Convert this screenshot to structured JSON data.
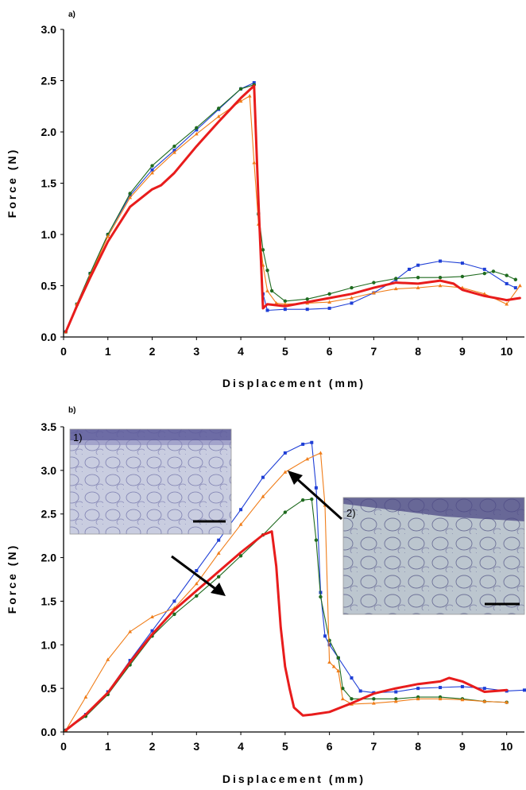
{
  "chart_data": [
    {
      "type": "line",
      "panel_label": "a)",
      "xlabel": "Displacement (mm)",
      "ylabel": "Force (N)",
      "xlim": [
        0,
        10.4
      ],
      "ylim": [
        0,
        3.0
      ],
      "xticks": [
        "0",
        "1",
        "2",
        "3",
        "4",
        "5",
        "6",
        "7",
        "8",
        "9",
        "10"
      ],
      "yticks": [
        "0.0",
        "0.5",
        "1.0",
        "1.5",
        "2.0",
        "2.5",
        "3.0"
      ],
      "grid": false,
      "series": [
        {
          "color": "#1f3fd6",
          "marker": "square",
          "x": [
            0.05,
            0.3,
            0.6,
            1.0,
            1.5,
            2.0,
            2.5,
            3.0,
            3.5,
            4.0,
            4.3,
            4.4,
            4.5,
            4.6,
            5.0,
            5.5,
            6.0,
            6.5,
            7.0,
            7.5,
            7.8,
            8.0,
            8.5,
            9.0,
            9.5,
            10.0,
            10.2
          ],
          "y": [
            0.05,
            0.32,
            0.62,
            1.0,
            1.38,
            1.63,
            1.82,
            2.02,
            2.22,
            2.42,
            2.48,
            1.2,
            0.42,
            0.26,
            0.27,
            0.27,
            0.28,
            0.33,
            0.43,
            0.56,
            0.66,
            0.7,
            0.74,
            0.72,
            0.66,
            0.52,
            0.48
          ]
        },
        {
          "color": "#1f6b1f",
          "marker": "circle",
          "x": [
            0.05,
            0.3,
            0.6,
            1.0,
            1.5,
            2.0,
            2.5,
            3.0,
            3.5,
            4.0,
            4.3,
            4.4,
            4.5,
            4.6,
            4.7,
            5.0,
            5.5,
            6.0,
            6.5,
            7.0,
            7.5,
            8.0,
            8.5,
            9.0,
            9.5,
            9.7,
            10.0,
            10.2
          ],
          "y": [
            0.05,
            0.32,
            0.62,
            1.0,
            1.4,
            1.67,
            1.86,
            2.04,
            2.23,
            2.42,
            2.46,
            1.2,
            0.85,
            0.65,
            0.45,
            0.35,
            0.37,
            0.42,
            0.48,
            0.53,
            0.57,
            0.58,
            0.58,
            0.59,
            0.62,
            0.64,
            0.6,
            0.56
          ]
        },
        {
          "color": "#f07d19",
          "marker": "triangle",
          "x": [
            0.05,
            0.3,
            0.6,
            1.0,
            1.5,
            2.0,
            2.5,
            3.0,
            3.5,
            4.0,
            4.2,
            4.3,
            4.4,
            4.5,
            4.6,
            4.8,
            5.0,
            5.5,
            6.0,
            6.5,
            7.0,
            7.5,
            8.0,
            8.5,
            9.0,
            9.5,
            10.0,
            10.3
          ],
          "y": [
            0.05,
            0.32,
            0.6,
            0.98,
            1.36,
            1.6,
            1.8,
            1.98,
            2.15,
            2.3,
            2.35,
            1.7,
            1.1,
            0.7,
            0.45,
            0.33,
            0.32,
            0.33,
            0.34,
            0.38,
            0.43,
            0.47,
            0.48,
            0.5,
            0.48,
            0.42,
            0.32,
            0.5
          ]
        },
        {
          "color": "#e81c1c",
          "marker": "none",
          "x": [
            0.05,
            0.3,
            0.6,
            1.0,
            1.5,
            2.0,
            2.2,
            2.5,
            3.0,
            3.5,
            4.0,
            4.3,
            4.4,
            4.5,
            4.6,
            5.0,
            5.5,
            6.0,
            6.5,
            7.0,
            7.5,
            8.0,
            8.5,
            8.8,
            9.0,
            9.5,
            10.0,
            10.3
          ],
          "y": [
            0.05,
            0.3,
            0.58,
            0.93,
            1.27,
            1.44,
            1.48,
            1.6,
            1.86,
            2.1,
            2.33,
            2.45,
            1.3,
            0.28,
            0.32,
            0.3,
            0.34,
            0.38,
            0.42,
            0.48,
            0.53,
            0.52,
            0.55,
            0.52,
            0.46,
            0.4,
            0.36,
            0.38
          ]
        }
      ]
    },
    {
      "type": "line",
      "panel_label": "b)",
      "xlabel": "Displacement (mm)",
      "ylabel": "Force (N)",
      "xlim": [
        0,
        10.4
      ],
      "ylim": [
        0,
        3.5
      ],
      "xticks": [
        "0",
        "1",
        "2",
        "3",
        "4",
        "5",
        "6",
        "7",
        "8",
        "9",
        "10"
      ],
      "yticks": [
        "0.0",
        "0.5",
        "1.0",
        "1.5",
        "2.0",
        "2.5",
        "3.0",
        "3.5"
      ],
      "grid": false,
      "annotations": [
        "1)",
        "2)"
      ],
      "series": [
        {
          "color": "#1f3fd6",
          "marker": "square",
          "x": [
            0.05,
            0.5,
            1.0,
            1.5,
            2.0,
            2.5,
            3.0,
            3.5,
            4.0,
            4.5,
            5.0,
            5.4,
            5.6,
            5.7,
            5.8,
            5.9,
            6.0,
            6.2,
            6.5,
            6.7,
            7.0,
            7.5,
            8.0,
            8.5,
            9.0,
            9.5,
            10.0,
            10.4
          ],
          "y": [
            0.02,
            0.2,
            0.46,
            0.82,
            1.16,
            1.5,
            1.85,
            2.2,
            2.55,
            2.92,
            3.2,
            3.3,
            3.32,
            2.8,
            1.6,
            1.1,
            1.0,
            0.85,
            0.62,
            0.47,
            0.45,
            0.46,
            0.5,
            0.51,
            0.52,
            0.5,
            0.47,
            0.48
          ]
        },
        {
          "color": "#1f6b1f",
          "marker": "circle",
          "x": [
            0.05,
            0.5,
            1.0,
            1.5,
            2.0,
            2.5,
            3.0,
            3.5,
            4.0,
            4.5,
            5.0,
            5.4,
            5.6,
            5.7,
            5.8,
            6.0,
            6.2,
            6.3,
            6.5,
            7.0,
            7.5,
            8.0,
            8.5,
            9.0,
            9.5,
            10.0
          ],
          "y": [
            0.02,
            0.18,
            0.43,
            0.77,
            1.1,
            1.35,
            1.56,
            1.78,
            2.02,
            2.26,
            2.52,
            2.66,
            2.67,
            2.2,
            1.55,
            1.05,
            0.85,
            0.5,
            0.38,
            0.38,
            0.38,
            0.4,
            0.4,
            0.38,
            0.35,
            0.34
          ]
        },
        {
          "color": "#f07d19",
          "marker": "triangle",
          "x": [
            0.05,
            0.5,
            1.0,
            1.5,
            2.0,
            2.5,
            3.0,
            3.5,
            4.0,
            4.5,
            5.0,
            5.5,
            5.8,
            5.9,
            6.0,
            6.1,
            6.2,
            6.3,
            6.5,
            7.0,
            7.5,
            8.0,
            8.5,
            9.0,
            9.5,
            10.0
          ],
          "y": [
            0.02,
            0.4,
            0.83,
            1.15,
            1.32,
            1.42,
            1.7,
            2.05,
            2.38,
            2.7,
            2.98,
            3.13,
            3.2,
            2.6,
            0.8,
            0.75,
            0.7,
            0.38,
            0.32,
            0.33,
            0.35,
            0.38,
            0.38,
            0.37,
            0.35,
            0.34
          ]
        },
        {
          "color": "#e81c1c",
          "marker": "none",
          "x": [
            0.05,
            0.5,
            1.0,
            1.5,
            2.0,
            2.5,
            3.0,
            3.5,
            4.0,
            4.5,
            4.7,
            4.8,
            4.9,
            5.0,
            5.1,
            5.2,
            5.4,
            5.6,
            6.0,
            6.5,
            7.0,
            7.5,
            8.0,
            8.5,
            8.7,
            9.0,
            9.5,
            10.0
          ],
          "y": [
            0.02,
            0.2,
            0.45,
            0.8,
            1.12,
            1.4,
            1.62,
            1.84,
            2.06,
            2.26,
            2.3,
            1.9,
            1.2,
            0.75,
            0.5,
            0.28,
            0.19,
            0.2,
            0.23,
            0.33,
            0.44,
            0.5,
            0.55,
            0.58,
            0.62,
            0.58,
            0.46,
            0.48
          ]
        }
      ]
    }
  ]
}
